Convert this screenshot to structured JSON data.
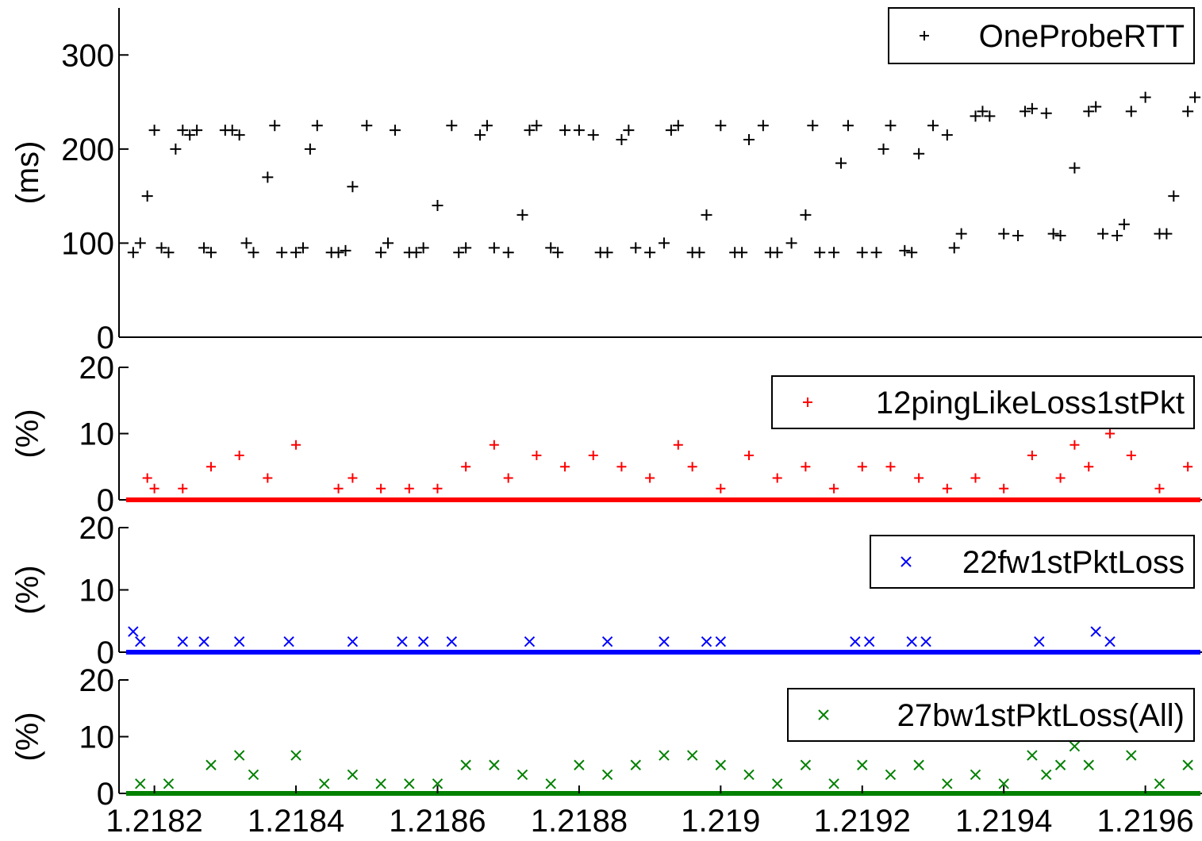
{
  "colors": {
    "rtt": "#000000",
    "ping_loss": "#ff0000",
    "fw_loss": "#0000ff",
    "bw_loss": "#008000"
  },
  "chart_data": [
    {
      "type": "scatter",
      "marker": "plus",
      "legend": "OneProbeRTT",
      "legend_position": "top-right",
      "ylabel": "(ms)",
      "ylim": [
        0,
        350
      ],
      "yticks": [
        "0",
        "100",
        "200",
        "300"
      ],
      "ytick_values": [
        0,
        100,
        200,
        300
      ],
      "xlim": [
        1.21815,
        1.21968
      ],
      "series": [
        {
          "x": [
            1.21817,
            1.21818,
            1.21819,
            1.2182,
            1.21821,
            1.21822,
            1.21823,
            1.21824,
            1.21825,
            1.21826,
            1.21827,
            1.21828,
            1.2183,
            1.21831,
            1.21832,
            1.21833,
            1.21834,
            1.21836,
            1.21837,
            1.21838,
            1.2184,
            1.21841,
            1.21842,
            1.21843,
            1.21845,
            1.21846,
            1.21847,
            1.21848,
            1.2185,
            1.21852,
            1.21853,
            1.21854,
            1.21856,
            1.21857,
            1.21858,
            1.2186,
            1.21862,
            1.21863,
            1.21864,
            1.21866,
            1.21867,
            1.21868,
            1.2187,
            1.21872,
            1.21873,
            1.21874,
            1.21876,
            1.21877,
            1.21878,
            1.2188,
            1.21882,
            1.21883,
            1.21884,
            1.21886,
            1.21887,
            1.21888,
            1.2189,
            1.21892,
            1.21893,
            1.21894,
            1.21896,
            1.21897,
            1.21898,
            1.219,
            1.21902,
            1.21903,
            1.21904,
            1.21906,
            1.21907,
            1.21908,
            1.2191,
            1.21912,
            1.21913,
            1.21914,
            1.21916,
            1.21917,
            1.21918,
            1.2192,
            1.21922,
            1.21923,
            1.21924,
            1.21926,
            1.21927,
            1.21928,
            1.2193,
            1.21932,
            1.21933,
            1.21934,
            1.21936,
            1.21937,
            1.21938,
            1.2194,
            1.21942,
            1.21943,
            1.21944,
            1.21946,
            1.21947,
            1.21948,
            1.2195,
            1.21952,
            1.21953,
            1.21954,
            1.21956,
            1.21957,
            1.21958,
            1.2196,
            1.21962,
            1.21963,
            1.21964,
            1.21966,
            1.21967
          ],
          "y": [
            90,
            100,
            150,
            220,
            95,
            90,
            200,
            220,
            215,
            220,
            95,
            90,
            220,
            220,
            215,
            100,
            90,
            170,
            225,
            90,
            90,
            95,
            200,
            225,
            90,
            90,
            92,
            160,
            225,
            90,
            100,
            220,
            90,
            90,
            95,
            140,
            225,
            90,
            95,
            215,
            225,
            95,
            90,
            130,
            220,
            225,
            95,
            90,
            220,
            220,
            215,
            90,
            90,
            210,
            220,
            95,
            90,
            100,
            220,
            225,
            90,
            90,
            130,
            225,
            90,
            90,
            210,
            225,
            90,
            90,
            100,
            130,
            225,
            90,
            90,
            185,
            225,
            90,
            90,
            200,
            225,
            92,
            90,
            195,
            225,
            215,
            95,
            110,
            235,
            240,
            235,
            110,
            108,
            240,
            243,
            238,
            110,
            108,
            180,
            240,
            245,
            110,
            108,
            120,
            240,
            255,
            110,
            110,
            150,
            240,
            255
          ]
        }
      ]
    },
    {
      "type": "scatter",
      "marker": "plus",
      "legend": "12pingLikeLoss1stPkt",
      "legend_position": "top-right",
      "ylabel": "(%)",
      "ylim": [
        0,
        20
      ],
      "yticks": [
        "0",
        "10",
        "20"
      ],
      "ytick_values": [
        0,
        10,
        20
      ],
      "xlim": [
        1.21815,
        1.21968
      ],
      "series": [
        {
          "x": [
            1.21819,
            1.2182,
            1.21824,
            1.21828,
            1.21832,
            1.21836,
            1.2184,
            1.21846,
            1.21848,
            1.21852,
            1.21856,
            1.2186,
            1.21864,
            1.21868,
            1.2187,
            1.21874,
            1.21878,
            1.21882,
            1.21886,
            1.2189,
            1.21894,
            1.21896,
            1.219,
            1.21904,
            1.21908,
            1.21912,
            1.21916,
            1.2192,
            1.21924,
            1.21928,
            1.21932,
            1.21936,
            1.2194,
            1.21944,
            1.21948,
            1.2195,
            1.21952,
            1.21955,
            1.21958,
            1.21962,
            1.21966
          ],
          "y": [
            3.3,
            1.7,
            1.7,
            5,
            6.7,
            3.3,
            8.3,
            1.7,
            3.3,
            1.7,
            1.7,
            1.7,
            5,
            8.3,
            3.3,
            6.7,
            5,
            6.7,
            5,
            3.3,
            8.3,
            5,
            1.7,
            6.7,
            3.3,
            5,
            1.7,
            5,
            5,
            3.3,
            1.7,
            3.3,
            1.7,
            6.7,
            3.3,
            8.3,
            5,
            10,
            6.7,
            1.7,
            5
          ]
        }
      ]
    },
    {
      "type": "scatter",
      "marker": "x",
      "legend": "22fw1stPktLoss",
      "legend_position": "top-right",
      "ylabel": "(%)",
      "ylim": [
        0,
        20
      ],
      "yticks": [
        "0",
        "10",
        "20"
      ],
      "ytick_values": [
        0,
        10,
        20
      ],
      "xlim": [
        1.21815,
        1.21968
      ],
      "series": [
        {
          "x": [
            1.21817,
            1.21818,
            1.21824,
            1.21827,
            1.21832,
            1.21839,
            1.21848,
            1.21855,
            1.21858,
            1.21862,
            1.21873,
            1.21884,
            1.21892,
            1.21898,
            1.219,
            1.21919,
            1.21921,
            1.21927,
            1.21929,
            1.21945,
            1.21953,
            1.21955
          ],
          "y": [
            3.3,
            1.7,
            1.7,
            1.7,
            1.7,
            1.7,
            1.7,
            1.7,
            1.7,
            1.7,
            1.7,
            1.7,
            1.7,
            1.7,
            1.7,
            1.7,
            1.7,
            1.7,
            1.7,
            1.7,
            3.3,
            1.7
          ]
        }
      ]
    },
    {
      "type": "scatter",
      "marker": "x",
      "legend": "27bw1stPktLoss(All)",
      "legend_position": "top-right",
      "ylabel": "(%)",
      "ylim": [
        0,
        20
      ],
      "yticks": [
        "0",
        "10",
        "20"
      ],
      "ytick_values": [
        0,
        10,
        20
      ],
      "xlim": [
        1.21815,
        1.21968
      ],
      "xticks": [
        "1.2182",
        "1.2184",
        "1.2186",
        "1.2188",
        "1.219",
        "1.2192",
        "1.2194",
        "1.2196"
      ],
      "xtick_values": [
        1.2182,
        1.2184,
        1.2186,
        1.2188,
        1.219,
        1.2192,
        1.2194,
        1.2196
      ],
      "series": [
        {
          "x": [
            1.21818,
            1.21822,
            1.21828,
            1.21832,
            1.21834,
            1.2184,
            1.21844,
            1.21848,
            1.21852,
            1.21856,
            1.2186,
            1.21864,
            1.21868,
            1.21872,
            1.21876,
            1.2188,
            1.21884,
            1.21888,
            1.21892,
            1.21896,
            1.219,
            1.21904,
            1.21908,
            1.21912,
            1.21916,
            1.2192,
            1.21924,
            1.21928,
            1.21932,
            1.21936,
            1.2194,
            1.21944,
            1.21946,
            1.21948,
            1.2195,
            1.21952,
            1.21954,
            1.21958,
            1.21962,
            1.21966
          ],
          "y": [
            1.7,
            1.7,
            5,
            6.7,
            3.3,
            6.7,
            1.7,
            3.3,
            1.7,
            1.7,
            1.7,
            5,
            5,
            3.3,
            1.7,
            5,
            3.3,
            5,
            6.7,
            6.7,
            5,
            3.3,
            1.7,
            5,
            1.7,
            5,
            3.3,
            5,
            1.7,
            3.3,
            1.7,
            6.7,
            3.3,
            5,
            8.3,
            5,
            10,
            6.7,
            1.7,
            5
          ]
        }
      ]
    }
  ]
}
